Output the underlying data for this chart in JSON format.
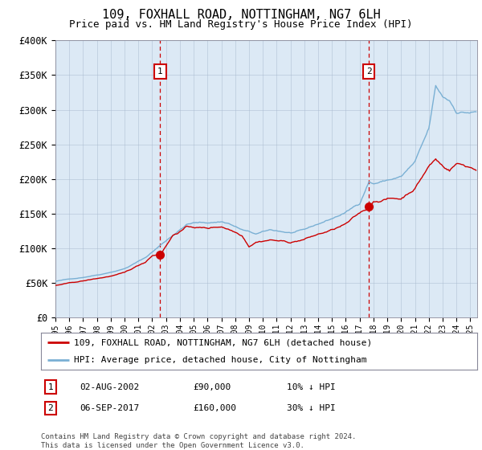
{
  "title": "109, FOXHALL ROAD, NOTTINGHAM, NG7 6LH",
  "subtitle": "Price paid vs. HM Land Registry's House Price Index (HPI)",
  "fig_bg_color": "#ffffff",
  "plot_bg_color": "#dce9f5",
  "ylim": [
    0,
    400000
  ],
  "yticks": [
    0,
    50000,
    100000,
    150000,
    200000,
    250000,
    300000,
    350000,
    400000
  ],
  "ytick_labels": [
    "£0",
    "£50K",
    "£100K",
    "£150K",
    "£200K",
    "£250K",
    "£300K",
    "£350K",
    "£400K"
  ],
  "xlim_start": 1995.0,
  "xlim_end": 2025.5,
  "red_line_color": "#cc0000",
  "blue_line_color": "#7ab0d4",
  "marker_color": "#cc0000",
  "vline_color": "#cc0000",
  "annotation_box_color": "#ffffff",
  "annotation_box_edgecolor": "#cc0000",
  "legend_label_red": "109, FOXHALL ROAD, NOTTINGHAM, NG7 6LH (detached house)",
  "legend_label_blue": "HPI: Average price, detached house, City of Nottingham",
  "transaction1_label": "1",
  "transaction1_date": "02-AUG-2002",
  "transaction1_price": "£90,000",
  "transaction1_hpi": "10% ↓ HPI",
  "transaction1_year": 2002.58,
  "transaction1_value": 90000,
  "transaction2_label": "2",
  "transaction2_date": "06-SEP-2017",
  "transaction2_price": "£160,000",
  "transaction2_hpi": "30% ↓ HPI",
  "transaction2_year": 2017.67,
  "transaction2_value": 160000,
  "footer": "Contains HM Land Registry data © Crown copyright and database right 2024.\nThis data is licensed under the Open Government Licence v3.0."
}
